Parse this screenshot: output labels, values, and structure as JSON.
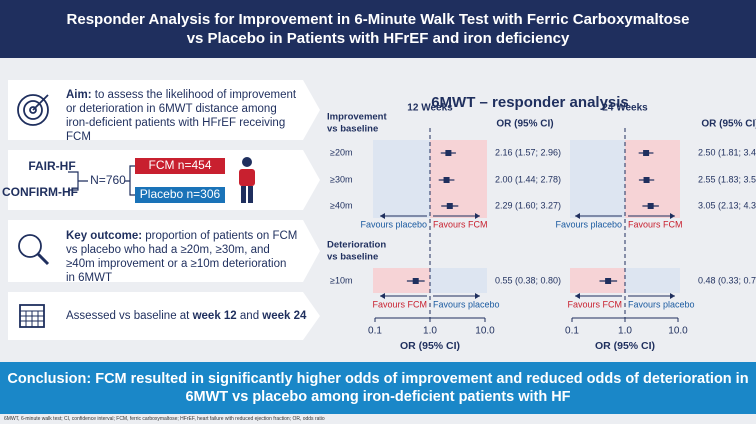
{
  "header": {
    "title": [
      "Responder Analysis for Improvement in 6-Minute Walk Test with Ferric Carboxymaltose",
      "vs Placebo in Patients with HFrEF and iron deficiency"
    ]
  },
  "panels": {
    "aim": {
      "label": "Aim:",
      "text": "to assess the likelihood of improvement or deterioration in 6MWT distance among iron-deficient patients with HFrEF receiving FCM"
    },
    "population": {
      "trials": [
        "FAIR-HF",
        "CONFIRM-HF"
      ],
      "total": "N=760",
      "fcm": "FCM n=454",
      "placebo": "Placebo n=306"
    },
    "outcome": {
      "label": "Key outcome:",
      "text": "proportion of patients on FCM vs placebo who had a ≥20m, ≥30m, and ≥40m improvement or a ≥10m deterioration in 6MWT"
    },
    "timing": [
      "Assessed vs baseline at ",
      "week 12",
      " and ",
      "week 24"
    ]
  },
  "section_title": "6MWT – responder analysis",
  "chart_data": [
    {
      "type": "forest",
      "title": "12 Weeks",
      "groups": [
        [
          "Improvement",
          "vs baseline"
        ],
        [
          "Deterioration",
          "vs baseline"
        ]
      ],
      "categories": [
        "≥20m",
        "≥30m",
        "≥40m",
        "≥10m"
      ],
      "ci_header": "OR (95% CI)",
      "values": [
        2.16,
        2.0,
        2.29,
        0.55
      ],
      "lower": [
        1.57,
        1.44,
        1.6,
        0.38
      ],
      "upper": [
        2.96,
        2.78,
        3.27,
        0.8
      ],
      "value_labels": [
        "2.16 (1.57; 2.96)",
        "2.00 (1.44; 2.78)",
        "2.29 (1.60; 3.27)",
        "0.55 (0.38; 0.80)"
      ],
      "improvement_labels": [
        "Favours placebo",
        "Favours FCM"
      ],
      "deterioration_labels": [
        "Favours FCM",
        "Favours placebo"
      ],
      "xlim": [
        0.1,
        10
      ],
      "xticks": [
        0.1,
        {
          "value": 1,
          "label": "1.0"
        },
        {
          "value": 10,
          "label": "10.0"
        }
      ],
      "log_scale": true,
      "xlabel": "OR (95% CI)",
      "color": "#1f2f5e"
    },
    {
      "type": "forest",
      "title": "24 Weeks",
      "ci_header": "OR (95% CI)",
      "values": [
        2.5,
        2.55,
        3.05,
        0.48
      ],
      "lower": [
        1.81,
        1.83,
        2.13,
        0.33
      ],
      "upper": [
        3.44,
        3.56,
        4.36,
        0.71
      ],
      "value_labels": [
        "2.50 (1.81; 3.44)",
        "2.55 (1.83; 3.56)",
        "3.05 (2.13; 4.36)",
        "0.48 (0.33; 0.71)"
      ],
      "improvement_labels": [
        "Favours placebo",
        "Favours FCM"
      ],
      "deterioration_labels": [
        "Favours FCM",
        "Favours placebo"
      ],
      "xlim": [
        0.1,
        10
      ],
      "xticks": [
        0.1,
        {
          "value": 1,
          "label": "1.0"
        },
        {
          "value": 10,
          "label": "10.0"
        }
      ],
      "log_scale": true,
      "xlabel": "OR (95% CI)",
      "color": "#1f2f5e"
    }
  ],
  "conclusion": [
    "Conclusion: FCM resulted in significantly higher odds of improvement and reduced odds of deterioration in",
    "6MWT vs placebo among iron-deficient patients with HF"
  ],
  "footnote": "6MWT, 6-minute walk test; CI, confidence interval; FCM, ferric carboxymaltose; HFrEF, heart failure with reduced ejection fraction; OR, odds ratio"
}
